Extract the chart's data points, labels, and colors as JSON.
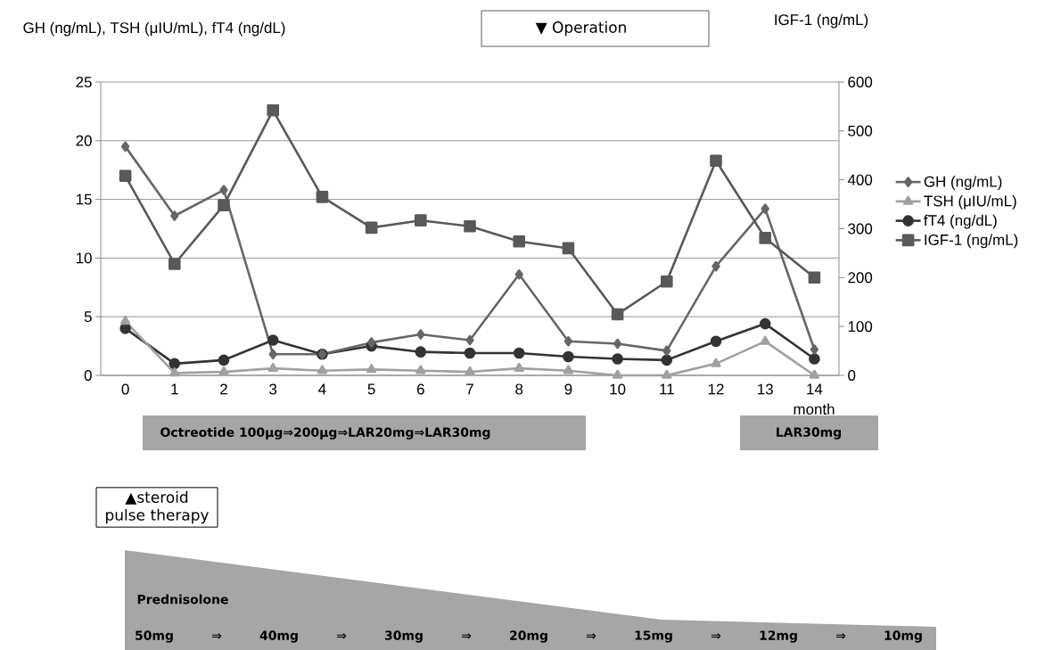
{
  "chart_data": {
    "type": "line",
    "categories": [
      "0",
      "1",
      "2",
      "3",
      "4",
      "5",
      "6",
      "7",
      "8",
      "9",
      "10",
      "11",
      "12",
      "13",
      "14"
    ],
    "xlabel": "month",
    "ylabel": "GH (ng/mL), TSH (μIU/mL), fT4 (ng/dL)",
    "y2label": "IGF-1 (ng/mL)",
    "ylim": [
      0,
      25
    ],
    "yticks": [
      0,
      5,
      10,
      15,
      20,
      25
    ],
    "y2lim": [
      0,
      600
    ],
    "y2ticks": [
      0,
      100,
      200,
      300,
      400,
      500,
      600
    ],
    "grid": "y",
    "legend": "right",
    "line_style": "solid",
    "series": [
      {
        "name": "GH (ng/mL)",
        "color": "#666666",
        "marker": "diamond",
        "values": [
          19.5,
          13.6,
          15.8,
          1.8,
          1.8,
          2.8,
          3.5,
          3.0,
          8.6,
          2.9,
          2.7,
          2.1,
          9.3,
          14.2,
          2.2
        ]
      },
      {
        "name": "TSH (μIU/mL)",
        "color": "#a0a0a0",
        "marker": "triangle",
        "values": [
          4.6,
          0.2,
          0.3,
          0.6,
          0.4,
          0.5,
          0.4,
          0.3,
          0.6,
          0.4,
          0,
          0,
          1.0,
          2.9,
          0
        ]
      },
      {
        "name": "fT4 (ng/dL)",
        "color": "#333333",
        "marker": "circle",
        "values": [
          4.0,
          1.0,
          1.3,
          3.0,
          1.8,
          2.5,
          2.0,
          1.9,
          1.9,
          1.6,
          1.4,
          1.3,
          2.9,
          4.4,
          1.4
        ]
      },
      {
        "name": "IGF-1 (ng/mL)",
        "color": "#595959",
        "marker": "square",
        "axis": "y2",
        "values": [
          408,
          228,
          348,
          542,
          365,
          302,
          317,
          305,
          274,
          260,
          125,
          192,
          439,
          281,
          200
        ]
      }
    ],
    "annotations": [
      "▼ Operation",
      "Octreotide 100μg⇒200μg⇒LAR20mg⇒LAR30mg",
      "LAR30mg",
      "▲steroid pulse therapy",
      "Prednisolone",
      "50mg",
      "⇒",
      "40mg",
      "⇒",
      "30mg",
      "⇒",
      "20mg",
      "⇒",
      "15mg",
      "⇒",
      "12mg",
      "⇒",
      "10mg"
    ]
  }
}
